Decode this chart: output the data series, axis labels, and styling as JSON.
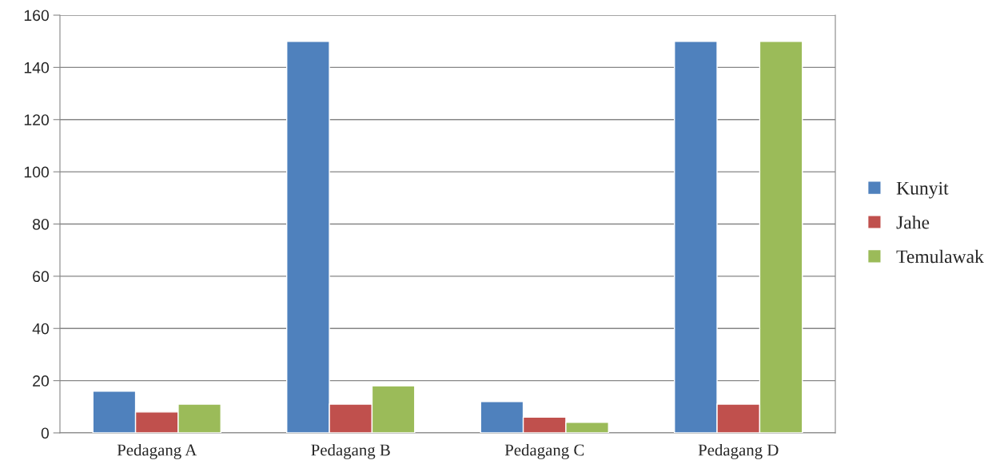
{
  "chart_data": {
    "type": "bar",
    "categories": [
      "Pedagang A",
      "Pedagang B",
      "Pedagang C",
      "Pedagang D"
    ],
    "series": [
      {
        "name": "Kunyit",
        "color": "#4f81bd",
        "values": [
          16,
          150,
          12,
          150
        ]
      },
      {
        "name": "Jahe",
        "color": "#c0504d",
        "values": [
          8,
          11,
          6,
          11
        ]
      },
      {
        "name": "Temulawak",
        "color": "#9bbb59",
        "values": [
          11,
          18,
          4,
          150
        ]
      }
    ],
    "ylim": [
      0,
      160
    ],
    "yticks": [
      0,
      20,
      40,
      60,
      80,
      100,
      120,
      140,
      160
    ],
    "grid": "y",
    "legend": "right"
  }
}
